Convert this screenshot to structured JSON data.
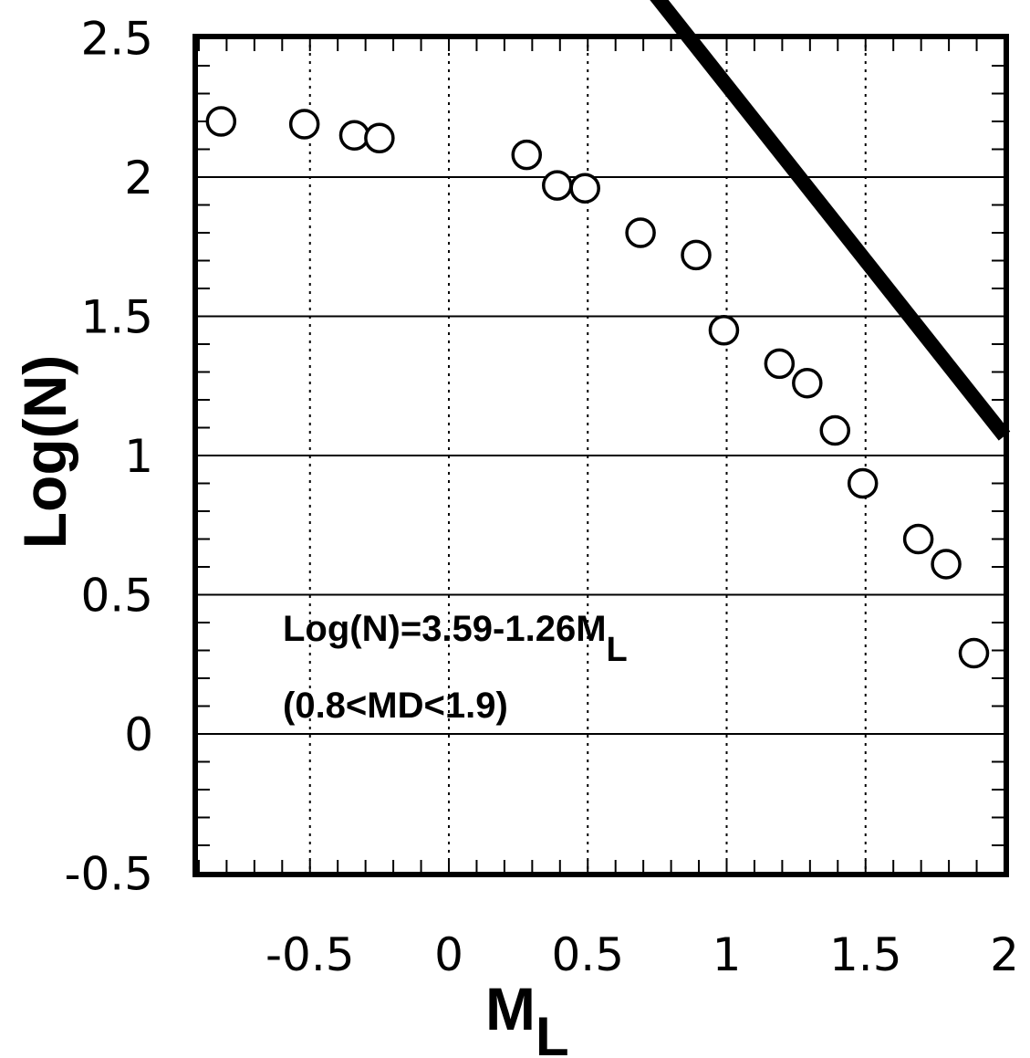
{
  "chart_data": {
    "type": "scatter",
    "title": "",
    "xlabel": "M",
    "xlabel_sub": "L",
    "ylabel": "Log(N)",
    "xlim": [
      -0.9,
      2.0
    ],
    "ylim": [
      -0.5,
      2.5
    ],
    "x_ticks": [
      -0.5,
      0,
      0.5,
      1,
      1.5,
      2
    ],
    "x_tick_labels": [
      "-0.5",
      "0",
      "0.5",
      "1",
      "1.5",
      "2"
    ],
    "y_ticks": [
      -0.5,
      0,
      0.5,
      1,
      1.5,
      2,
      2.5
    ],
    "y_tick_labels": [
      "-0.5",
      "0",
      "0.5",
      "1",
      "1.5",
      "2",
      "2.5"
    ],
    "grid": {
      "x": "dotted",
      "y": "solid"
    },
    "series": [
      {
        "marker": "open-circle",
        "points": [
          {
            "x": -0.82,
            "y": 2.2
          },
          {
            "x": -0.52,
            "y": 2.19
          },
          {
            "x": -0.34,
            "y": 2.15
          },
          {
            "x": -0.25,
            "y": 2.14
          },
          {
            "x": 0.28,
            "y": 2.08
          },
          {
            "x": 0.39,
            "y": 1.97
          },
          {
            "x": 0.49,
            "y": 1.96
          },
          {
            "x": 0.69,
            "y": 1.8
          },
          {
            "x": 0.89,
            "y": 1.72
          },
          {
            "x": 0.99,
            "y": 1.45
          },
          {
            "x": 1.19,
            "y": 1.33
          },
          {
            "x": 1.29,
            "y": 1.26
          },
          {
            "x": 1.39,
            "y": 1.09
          },
          {
            "x": 1.49,
            "y": 0.9
          },
          {
            "x": 1.69,
            "y": 0.7
          },
          {
            "x": 1.79,
            "y": 0.61
          },
          {
            "x": 1.89,
            "y": 0.29
          }
        ]
      }
    ],
    "fit_line": {
      "intercept": 3.59,
      "slope": -1.26,
      "x_range": [
        0.65,
        2.0
      ]
    },
    "annotations": [
      {
        "text": "Log(N)=3.59-1.26M",
        "sub": "L"
      },
      {
        "text": "(0.8<MD<1.9)"
      }
    ]
  }
}
